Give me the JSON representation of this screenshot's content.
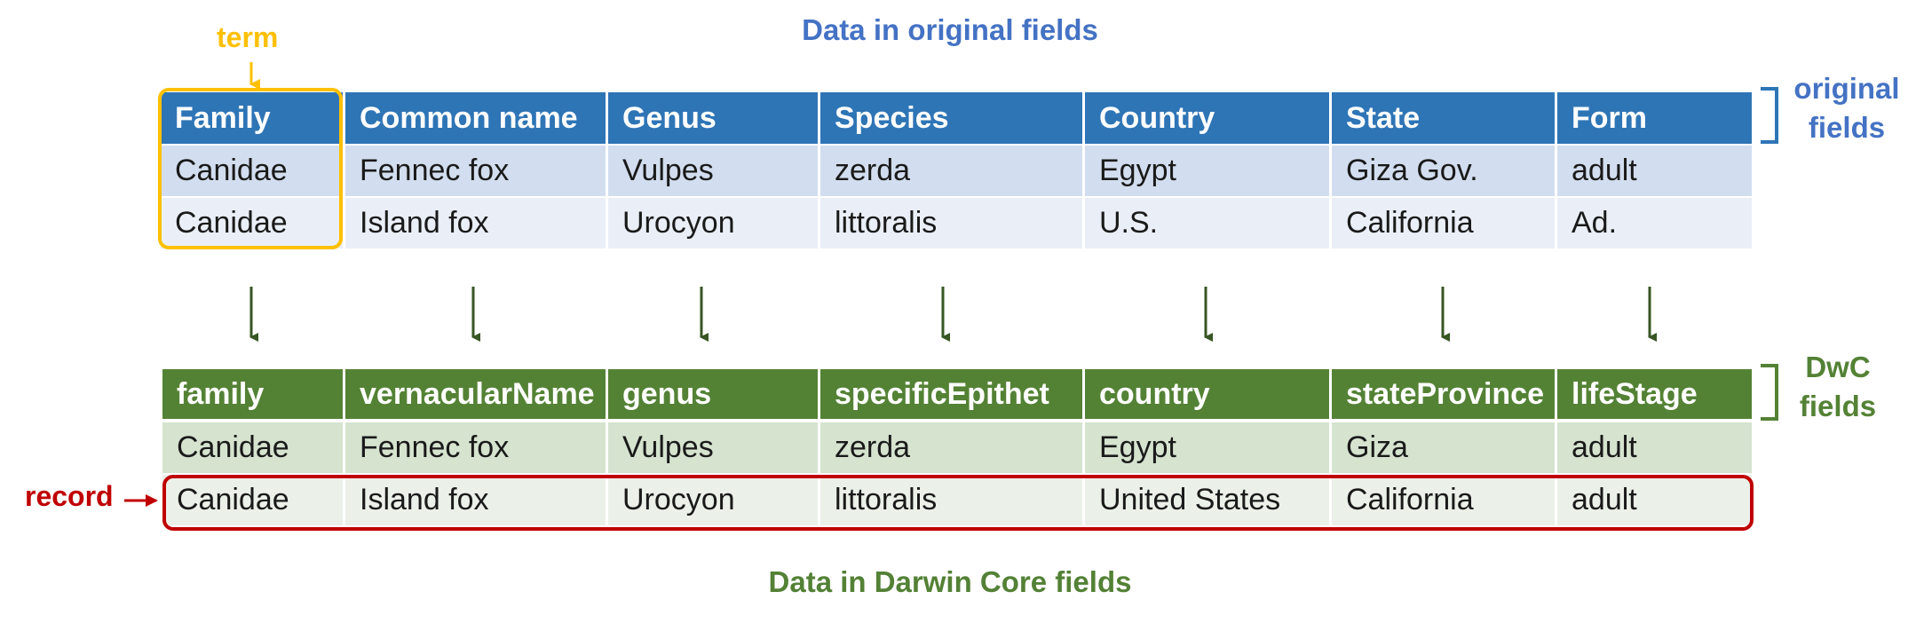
{
  "titles": {
    "original": "Data in original fields",
    "darwin_core": "Data in Darwin Core fields"
  },
  "labels": {
    "term": "term",
    "record": "record",
    "original_fields_line1": "original",
    "original_fields_line2": "fields",
    "dwc_fields_line1": "DwC",
    "dwc_fields_line2": "fields"
  },
  "original_table": {
    "headers": [
      "Family",
      "Common name",
      "Genus",
      "Species",
      "Country",
      "State",
      "Form"
    ],
    "rows": [
      [
        "Canidae",
        "Fennec fox",
        "Vulpes",
        "zerda",
        "Egypt",
        "Giza Gov.",
        "adult"
      ],
      [
        "Canidae",
        "Island fox",
        "Urocyon",
        "littoralis",
        "U.S.",
        "California",
        "Ad."
      ]
    ]
  },
  "dwc_table": {
    "headers": [
      "family",
      "vernacularName",
      "genus",
      "specificEpithet",
      "country",
      "stateProvince",
      "lifeStage"
    ],
    "rows": [
      [
        "Canidae",
        "Fennec fox",
        "Vulpes",
        "zerda",
        "Egypt",
        "Giza",
        "adult"
      ],
      [
        "Canidae",
        "Island fox",
        "Urocyon",
        "littoralis",
        "United States",
        "California",
        "adult"
      ]
    ]
  },
  "colors": {
    "original_header": "#2E75B6",
    "dwc_header": "#548235",
    "term_highlight": "#FFC000",
    "record_highlight": "#C00000",
    "arrow": "#375623"
  }
}
